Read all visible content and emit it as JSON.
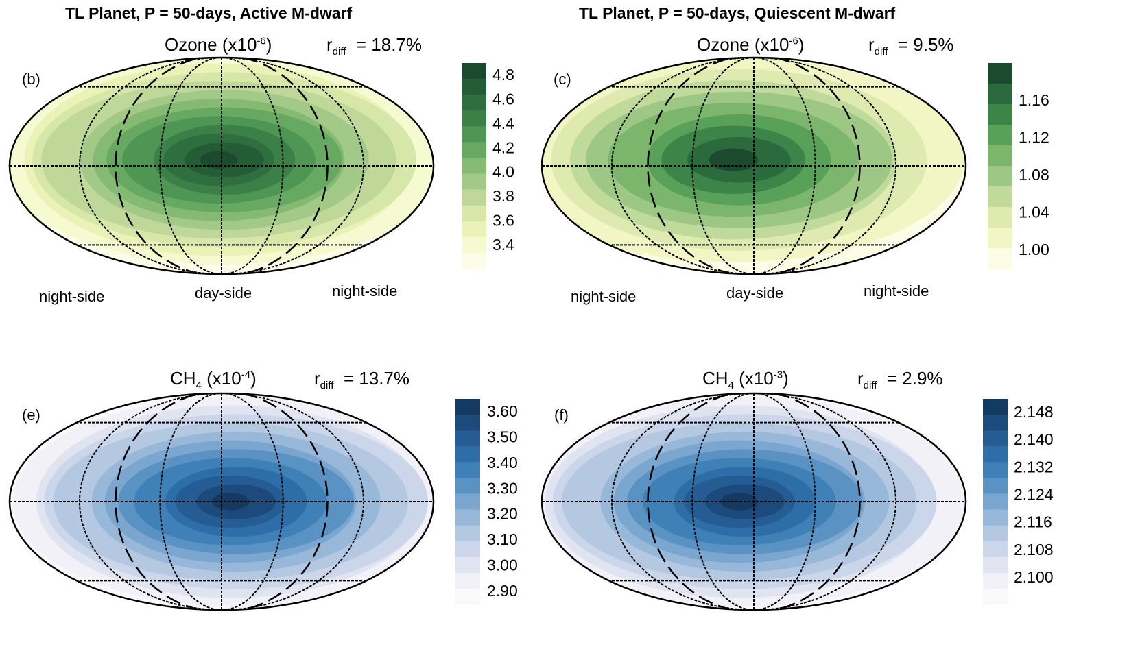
{
  "columns": {
    "left_title": "TL Planet, P = 50-days, Active M-dwarf",
    "right_title": "TL Planet, P = 50-days, Quiescent M-dwarf"
  },
  "side_labels": {
    "night": "night-side",
    "day": "day-side"
  },
  "chart_data": [
    {
      "type": "heatmap",
      "panel": "(b)",
      "title_species": "Ozone",
      "title_scale_base": "(x10",
      "title_scale_exp": "-6",
      "title_scale_close": ")",
      "rdiff_label": "r",
      "rdiff_sub": "diff",
      "rdiff_value": "=  18.7%",
      "colorbar_ticks": [
        "4.8",
        "4.6",
        "4.4",
        "4.2",
        "4.0",
        "3.8",
        "3.6",
        "3.4"
      ],
      "colorbar_colors": [
        "#1c4a2e",
        "#245c36",
        "#2f6e3e",
        "#3c8048",
        "#4f9553",
        "#67a862",
        "#85ba73",
        "#a3c988",
        "#bfd89a",
        "#d7e6a9",
        "#eaf2b8",
        "#f6fad0",
        "#fcfde8"
      ],
      "range": [
        3.3,
        4.9
      ],
      "field_peak_lon": 0,
      "field_peak_lat": 5
    },
    {
      "type": "heatmap",
      "panel": "(c)",
      "title_species": "Ozone",
      "title_scale_base": "(x10",
      "title_scale_exp": "-6",
      "title_scale_close": ")",
      "rdiff_label": "r",
      "rdiff_sub": "diff",
      "rdiff_value": "=  9.5%",
      "colorbar_ticks": [
        "1.16",
        "1.12",
        "1.08",
        "1.04",
        "1.00"
      ],
      "colorbar_colors": [
        "#1c4a2e",
        "#2a6a3c",
        "#3d8449",
        "#59a059",
        "#7cb56c",
        "#9dc784",
        "#c0da9c",
        "#dfeab0",
        "#f1f6c4",
        "#fcfde6"
      ],
      "range": [
        0.98,
        1.19
      ],
      "field_peak_lon": -15,
      "field_peak_lat": 5
    },
    {
      "type": "heatmap",
      "panel": "(e)",
      "title_species": "CH",
      "title_species_sub": "4",
      "title_scale_base": "(x10",
      "title_scale_exp": "-4",
      "title_scale_close": ")",
      "rdiff_label": "r",
      "rdiff_sub": "diff",
      "rdiff_value": "=  13.7%",
      "colorbar_ticks": [
        "3.60",
        "3.50",
        "3.40",
        "3.30",
        "3.20",
        "3.10",
        "3.00",
        "2.90"
      ],
      "colorbar_colors": [
        "#143a62",
        "#1d4a7c",
        "#245c93",
        "#2e6ea8",
        "#3f80b7",
        "#5a93c3",
        "#7aa6cf",
        "#98b8d9",
        "#b4c8e2",
        "#ccd6ea",
        "#e0e4f1",
        "#f1f1f7",
        "#fbf8fb"
      ],
      "range": [
        2.85,
        3.65
      ],
      "field_peak_lon": 10,
      "field_peak_lat": 0
    },
    {
      "type": "heatmap",
      "panel": "(f)",
      "title_species": "CH",
      "title_species_sub": "4",
      "title_scale_base": "(x10",
      "title_scale_exp": "-3",
      "title_scale_close": ")",
      "rdiff_label": "r",
      "rdiff_sub": "diff",
      "rdiff_value": "=  2.9%",
      "colorbar_ticks": [
        "2.148",
        "2.140",
        "2.132",
        "2.124",
        "2.116",
        "2.108",
        "2.100"
      ],
      "colorbar_colors": [
        "#143a62",
        "#1d4a7c",
        "#245c93",
        "#2e6ea8",
        "#3f80b7",
        "#5a93c3",
        "#7aa6cf",
        "#98b8d9",
        "#b4c8e2",
        "#ccd6ea",
        "#e0e4f1",
        "#f1f1f7",
        "#fbf8fb"
      ],
      "range": [
        2.096,
        2.152
      ],
      "field_peak_lon": -10,
      "field_peak_lat": 0
    }
  ]
}
